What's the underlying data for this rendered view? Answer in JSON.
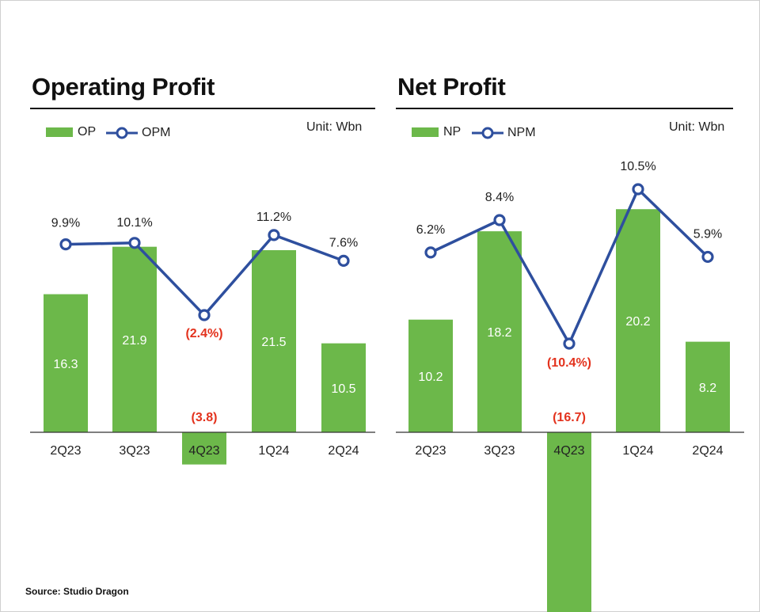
{
  "colors": {
    "bar": "#6cb84a",
    "line": "#2e4f9e",
    "negative": "#e3321d",
    "bar_label": "#ffffff",
    "text": "#222222"
  },
  "source": "Source: Studio Dragon",
  "chart_data": [
    {
      "type": "bar",
      "title": "Operating Profit",
      "unit": "Unit: Wbn",
      "categories": [
        "2Q23",
        "3Q23",
        "4Q23",
        "1Q24",
        "2Q24"
      ],
      "series": [
        {
          "name": "OP",
          "type": "bar",
          "values": [
            16.3,
            21.9,
            -3.8,
            21.5,
            10.5
          ],
          "labels": [
            "16.3",
            "21.9",
            "(3.8)",
            "21.5",
            "10.5"
          ]
        },
        {
          "name": "OPM",
          "type": "line",
          "values": [
            9.9,
            10.1,
            -2.4,
            11.2,
            7.6
          ],
          "labels": [
            "9.9%",
            "10.1%",
            "(2.4%)",
            "11.2%",
            "7.6%"
          ]
        }
      ]
    },
    {
      "type": "bar",
      "title": "Net Profit",
      "unit": "Unit: Wbn",
      "categories": [
        "2Q23",
        "3Q23",
        "4Q23",
        "1Q24",
        "2Q24"
      ],
      "series": [
        {
          "name": "NP",
          "type": "bar",
          "values": [
            10.2,
            18.2,
            -16.7,
            20.2,
            8.2
          ],
          "labels": [
            "10.2",
            "18.2",
            "(16.7)",
            "20.2",
            "8.2"
          ]
        },
        {
          "name": "NPM",
          "type": "line",
          "values": [
            6.2,
            8.4,
            -10.4,
            10.5,
            5.9
          ],
          "labels": [
            "6.2%",
            "8.4%",
            "(10.4%)",
            "10.5%",
            "5.9%"
          ]
        }
      ]
    }
  ]
}
